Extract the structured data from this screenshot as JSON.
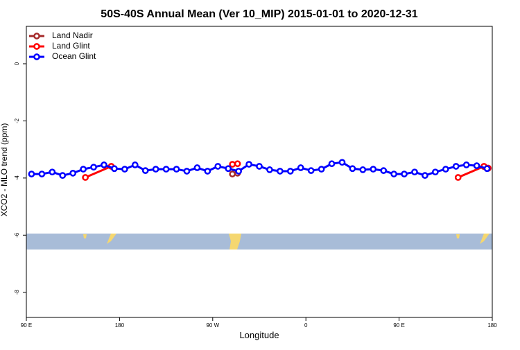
{
  "chart_data": {
    "type": "line",
    "title": "50S-40S Annual Mean (Ver 10_MIP)   2015-01-01 to 2020-12-31",
    "x_label": "Longitude",
    "y_label": "XCO2 - MLO trend (ppm)",
    "xlim": [
      90,
      540
    ],
    "xticks": [
      {
        "value": 90,
        "label": "90 E"
      },
      {
        "value": 180,
        "label": "180"
      },
      {
        "value": 270,
        "label": "90 W"
      },
      {
        "value": 360,
        "label": "0"
      },
      {
        "value": 450,
        "label": "90 E"
      },
      {
        "value": 540,
        "label": "180"
      }
    ],
    "ylim": [
      -8.88,
      1.31
    ],
    "yticks": [
      0,
      -2,
      -4,
      -6,
      -8
    ],
    "legend": "top-left",
    "series": [
      {
        "name": "Land Nadir",
        "color": "#a52a2a",
        "x": [
          289,
          294,
          532,
          536
        ],
        "values": [
          -3.86,
          -3.83,
          -3.6,
          -3.66
        ]
      },
      {
        "name": "Land Glint",
        "color": "#ff0000",
        "x": [
          147,
          172,
          289,
          294,
          507,
          532,
          536
        ],
        "values": [
          -3.98,
          -3.59,
          -3.52,
          -3.5,
          -3.98,
          -3.59,
          -3.65
        ]
      },
      {
        "name": "Ocean Glint",
        "color": "#0000ff",
        "x": [
          95,
          105,
          115,
          125,
          135,
          145,
          155,
          165,
          175,
          185,
          195,
          205,
          215,
          225,
          235,
          245,
          255,
          265,
          275,
          285,
          295,
          305,
          315,
          325,
          335,
          345,
          355,
          365,
          375,
          385,
          395,
          405,
          415,
          425,
          435,
          445,
          455,
          465,
          475,
          485,
          495,
          505,
          515,
          525,
          535
        ],
        "values": [
          -3.86,
          -3.86,
          -3.79,
          -3.91,
          -3.83,
          -3.69,
          -3.62,
          -3.54,
          -3.67,
          -3.69,
          -3.54,
          -3.74,
          -3.69,
          -3.69,
          -3.69,
          -3.76,
          -3.64,
          -3.76,
          -3.59,
          -3.67,
          -3.76,
          -3.52,
          -3.59,
          -3.71,
          -3.76,
          -3.76,
          -3.64,
          -3.74,
          -3.69,
          -3.5,
          -3.45,
          -3.67,
          -3.71,
          -3.69,
          -3.74,
          -3.86,
          -3.86,
          -3.79,
          -3.91,
          -3.79,
          -3.69,
          -3.59,
          -3.54,
          -3.57,
          -3.67
        ]
      }
    ]
  }
}
